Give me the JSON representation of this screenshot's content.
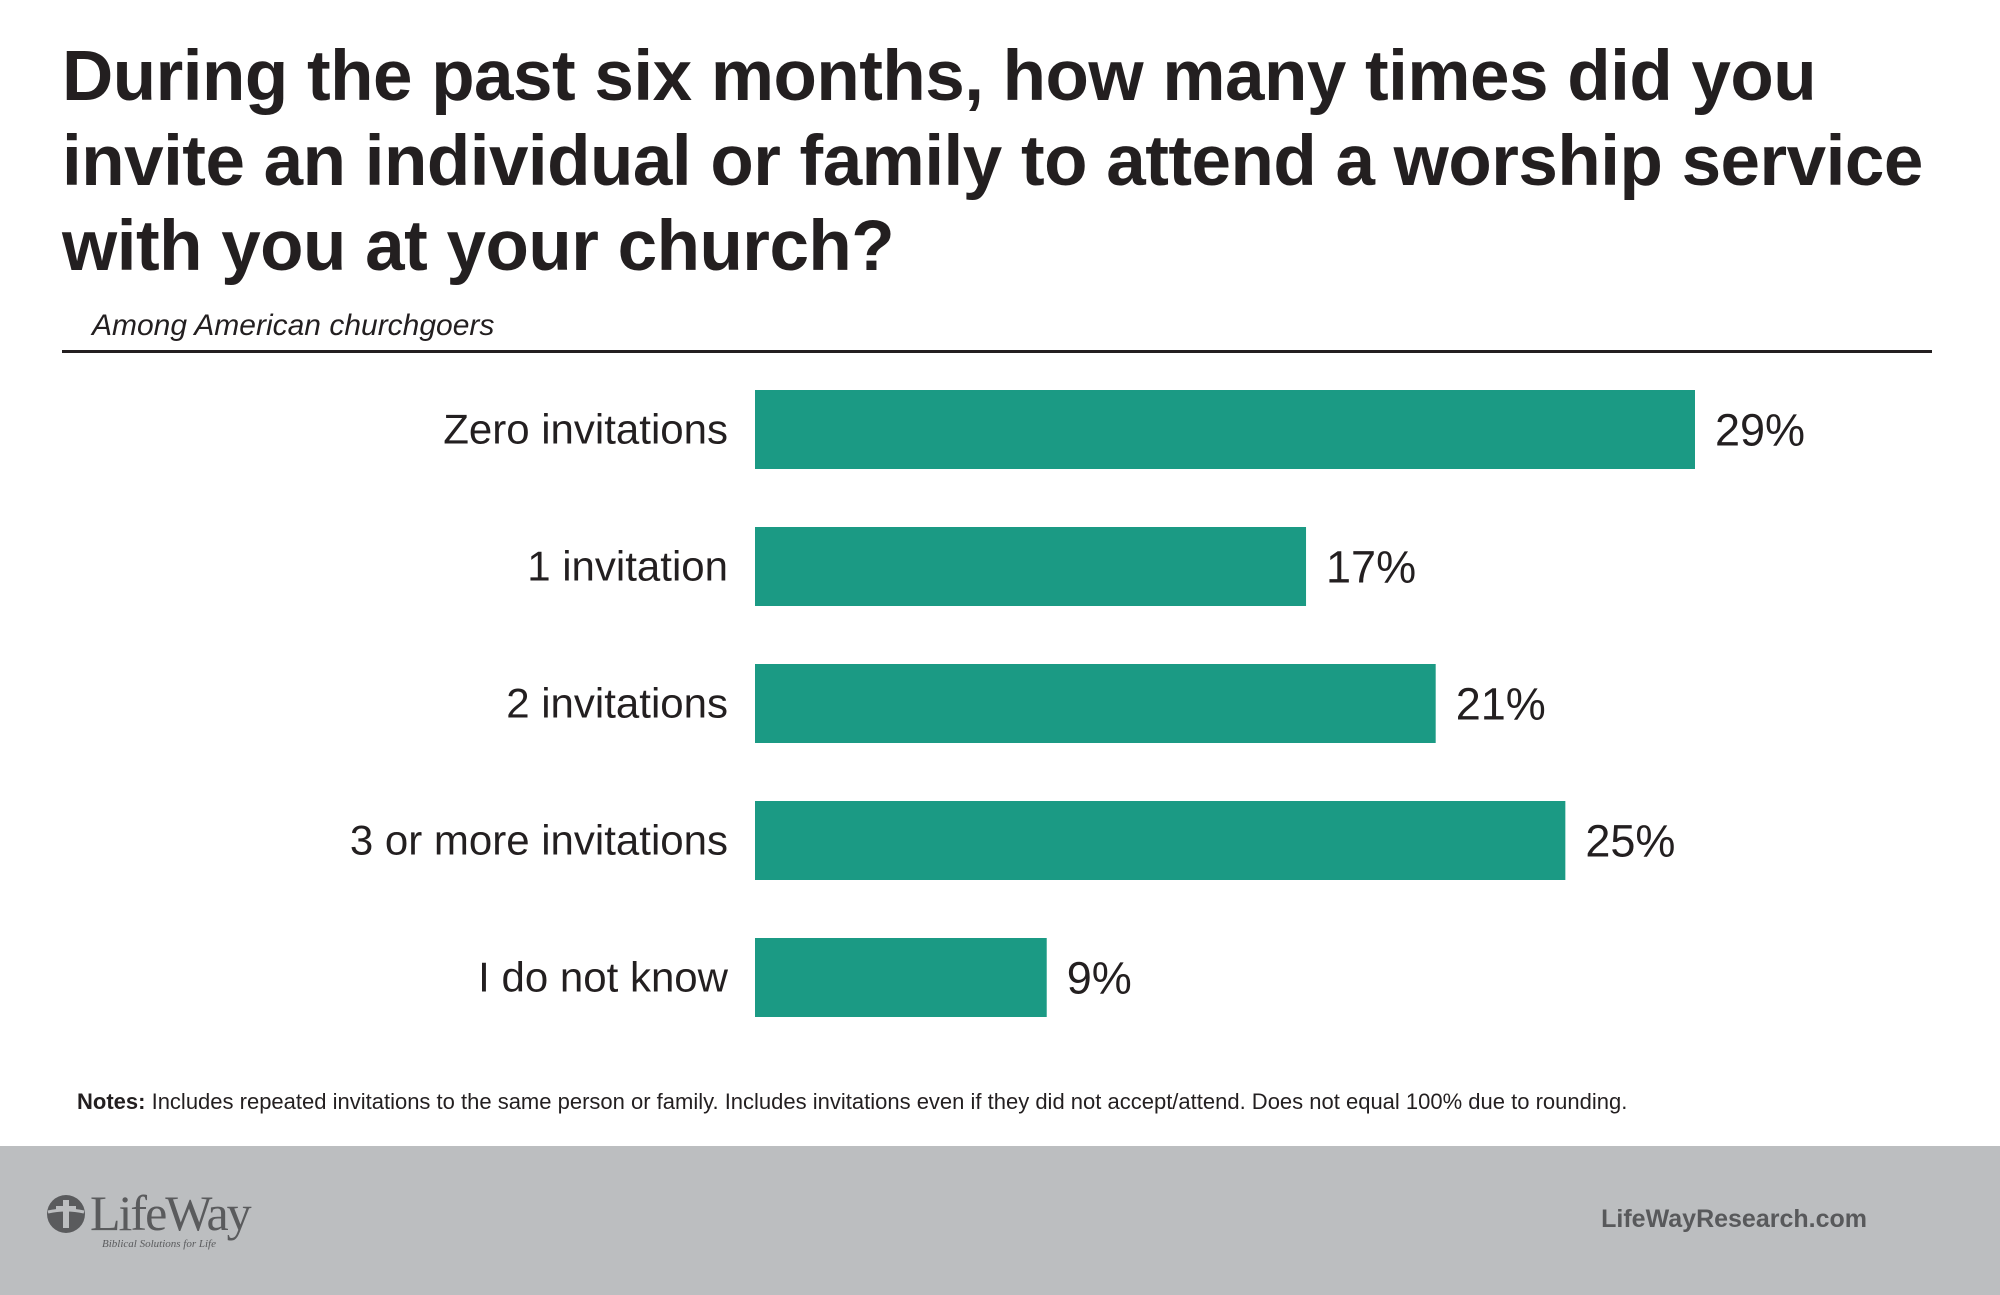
{
  "title": "During the past six months, how many times did you invite an individual or family to attend a worship service with you at your church?",
  "subtitle": "Among American churchgoers",
  "chart_data": {
    "type": "bar",
    "orientation": "horizontal",
    "title": "During the past six months, how many times did you invite an individual or family to attend a worship service with you at your church?",
    "subtitle": "Among American churchgoers",
    "categories": [
      "Zero invitations",
      "1 invitation",
      "2 invitations",
      "3 or more invitations",
      "I do not know"
    ],
    "values": [
      29,
      17,
      21,
      25,
      9
    ],
    "value_labels": [
      "29%",
      "17%",
      "21%",
      "25%",
      "9%"
    ],
    "unit": "%",
    "bar_color": "#1b9a84",
    "xlim": [
      0,
      29
    ],
    "grid": false,
    "legend": "none"
  },
  "notes": {
    "label": "Notes:",
    "text": "Includes repeated invitations to the same person or family. Includes invitations even if they did not accept/attend. Does not equal 100% due to rounding."
  },
  "footer": {
    "logo_text": "LifeWay",
    "logo_tagline": "Biblical Solutions for Life",
    "logo_icon": "cross-circle-icon",
    "website": "LifeWayResearch.com",
    "background": "#bcbec0"
  }
}
